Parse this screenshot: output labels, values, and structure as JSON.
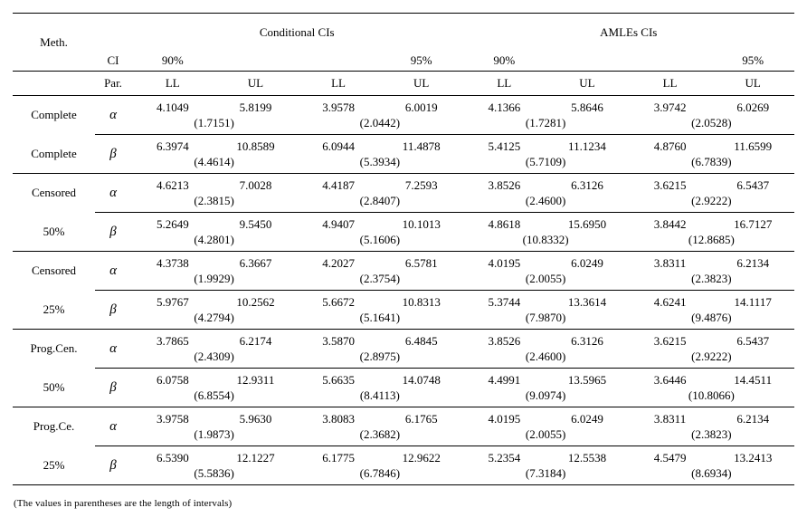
{
  "header": {
    "meth": "Meth.",
    "conditional": "Conditional CIs",
    "amles": "AMLEs CIs",
    "ci": "CI",
    "par": "Par.",
    "p90": "90%",
    "p95": "95%",
    "ll": "LL",
    "ul": "UL"
  },
  "symbols": {
    "alpha": "α",
    "beta": "β"
  },
  "groups": [
    {
      "method": [
        "Complete",
        "Complete"
      ],
      "alpha": [
        {
          "ll": "4.1049",
          "ul": "5.8199",
          "len": "(1.7151)"
        },
        {
          "ll": "3.9578",
          "ul": "6.0019",
          "len": "(2.0442)"
        },
        {
          "ll": "4.1366",
          "ul": "5.8646",
          "len": "(1.7281)"
        },
        {
          "ll": "3.9742",
          "ul": "6.0269",
          "len": "(2.0528)"
        }
      ],
      "beta": [
        {
          "ll": "6.3974",
          "ul": "10.8589",
          "len": "(4.4614)"
        },
        {
          "ll": "6.0944",
          "ul": "11.4878",
          "len": "(5.3934)"
        },
        {
          "ll": "5.4125",
          "ul": "11.1234",
          "len": "(5.7109)"
        },
        {
          "ll": "4.8760",
          "ul": "11.6599",
          "len": "(6.7839)"
        }
      ]
    },
    {
      "method": [
        "Censored",
        "50%"
      ],
      "alpha": [
        {
          "ll": "4.6213",
          "ul": "7.0028",
          "len": "(2.3815)"
        },
        {
          "ll": "4.4187",
          "ul": "7.2593",
          "len": "(2.8407)"
        },
        {
          "ll": "3.8526",
          "ul": "6.3126",
          "len": "(2.4600)"
        },
        {
          "ll": "3.6215",
          "ul": "6.5437",
          "len": "(2.9222)"
        }
      ],
      "beta": [
        {
          "ll": "5.2649",
          "ul": "9.5450",
          "len": "(4.2801)"
        },
        {
          "ll": "4.9407",
          "ul": "10.1013",
          "len": "(5.1606)"
        },
        {
          "ll": "4.8618",
          "ul": "15.6950",
          "len": "(10.8332)"
        },
        {
          "ll": "3.8442",
          "ul": "16.7127",
          "len": "(12.8685)"
        }
      ]
    },
    {
      "method": [
        "Censored",
        "25%"
      ],
      "alpha": [
        {
          "ll": "4.3738",
          "ul": "6.3667",
          "len": "(1.9929)"
        },
        {
          "ll": "4.2027",
          "ul": "6.5781",
          "len": "(2.3754)"
        },
        {
          "ll": "4.0195",
          "ul": "6.0249",
          "len": "(2.0055)"
        },
        {
          "ll": "3.8311",
          "ul": "6.2134",
          "len": "(2.3823)"
        }
      ],
      "beta": [
        {
          "ll": "5.9767",
          "ul": "10.2562",
          "len": "(4.2794)"
        },
        {
          "ll": "5.6672",
          "ul": "10.8313",
          "len": "(5.1641)"
        },
        {
          "ll": "5.3744",
          "ul": "13.3614",
          "len": "(7.9870)"
        },
        {
          "ll": "4.6241",
          "ul": "14.1117",
          "len": "(9.4876)"
        }
      ]
    },
    {
      "method": [
        "Prog.Cen.",
        "50%"
      ],
      "alpha": [
        {
          "ll": "3.7865",
          "ul": "6.2174",
          "len": "(2.4309)"
        },
        {
          "ll": "3.5870",
          "ul": "6.4845",
          "len": "(2.8975)"
        },
        {
          "ll": "3.8526",
          "ul": "6.3126",
          "len": "(2.4600)"
        },
        {
          "ll": "3.6215",
          "ul": "6.5437",
          "len": "(2.9222)"
        }
      ],
      "beta": [
        {
          "ll": "6.0758",
          "ul": "12.9311",
          "len": "(6.8554)"
        },
        {
          "ll": "5.6635",
          "ul": "14.0748",
          "len": "(8.4113)"
        },
        {
          "ll": "4.4991",
          "ul": "13.5965",
          "len": "(9.0974)"
        },
        {
          "ll": "3.6446",
          "ul": "14.4511",
          "len": "(10.8066)"
        }
      ]
    },
    {
      "method": [
        "Prog.Ce.",
        "25%"
      ],
      "alpha": [
        {
          "ll": "3.9758",
          "ul": "5.9630",
          "len": "(1.9873)"
        },
        {
          "ll": "3.8083",
          "ul": "6.1765",
          "len": "(2.3682)"
        },
        {
          "ll": "4.0195",
          "ul": "6.0249",
          "len": "(2.0055)"
        },
        {
          "ll": "3.8311",
          "ul": "6.2134",
          "len": "(2.3823)"
        }
      ],
      "beta": [
        {
          "ll": "6.5390",
          "ul": "12.1227",
          "len": "(5.5836)"
        },
        {
          "ll": "6.1775",
          "ul": "12.9622",
          "len": "(6.7846)"
        },
        {
          "ll": "5.2354",
          "ul": "12.5538",
          "len": "(7.3184)"
        },
        {
          "ll": "4.5479",
          "ul": "13.2413",
          "len": "(8.6934)"
        }
      ]
    }
  ],
  "footnote": "(The values in parentheses are the length of intervals)"
}
